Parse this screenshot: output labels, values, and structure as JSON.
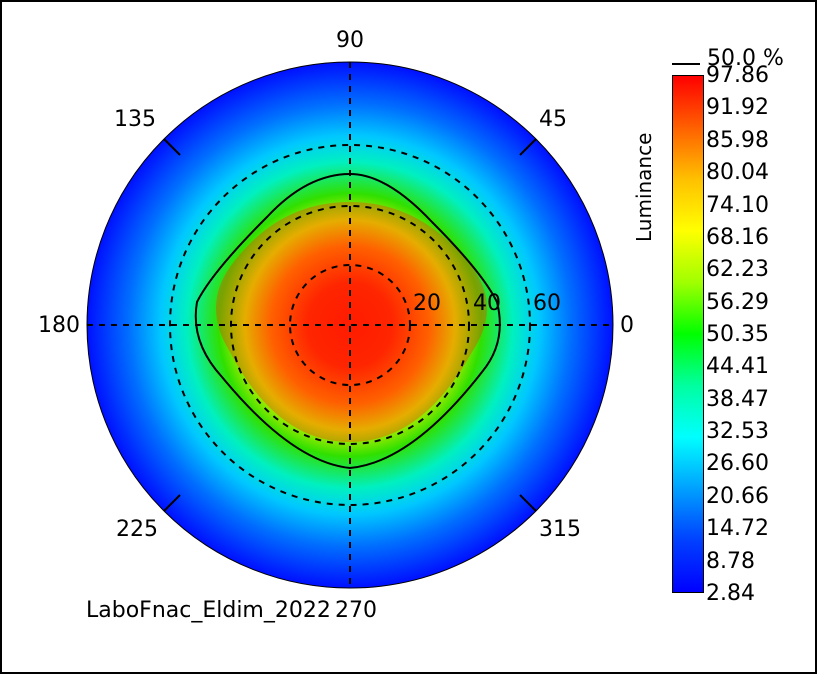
{
  "chart_data": {
    "type": "heatmap",
    "subtype": "polar-conoscope",
    "angle_labels": [
      "90",
      "45",
      "0",
      "315",
      "270",
      "225",
      "180",
      "135"
    ],
    "radial_ticks": [
      "20",
      "40",
      "60"
    ],
    "radial_range": [
      0,
      80
    ],
    "grid": true,
    "colorbar": {
      "label": "Luminance",
      "ticks": [
        "97.86",
        "91.92",
        "85.98",
        "80.04",
        "74.10",
        "68.16",
        "62.23",
        "56.29",
        "50.35",
        "44.41",
        "38.47",
        "32.53",
        "26.60",
        "20.66",
        "14.72",
        "8.78",
        "2.84"
      ],
      "min": 2.84,
      "max": 97.86,
      "colors": [
        "#ff0000",
        "#ff6000",
        "#ffc000",
        "#ffff00",
        "#a0ff00",
        "#00ff00",
        "#00ffa0",
        "#00ffff",
        "#00a0ff",
        "#0040ff",
        "#0000ff"
      ]
    },
    "contour": {
      "label": "50.0 %",
      "level_percent": 50.0
    },
    "footer": "LaboFnac_Eldim_2022"
  }
}
